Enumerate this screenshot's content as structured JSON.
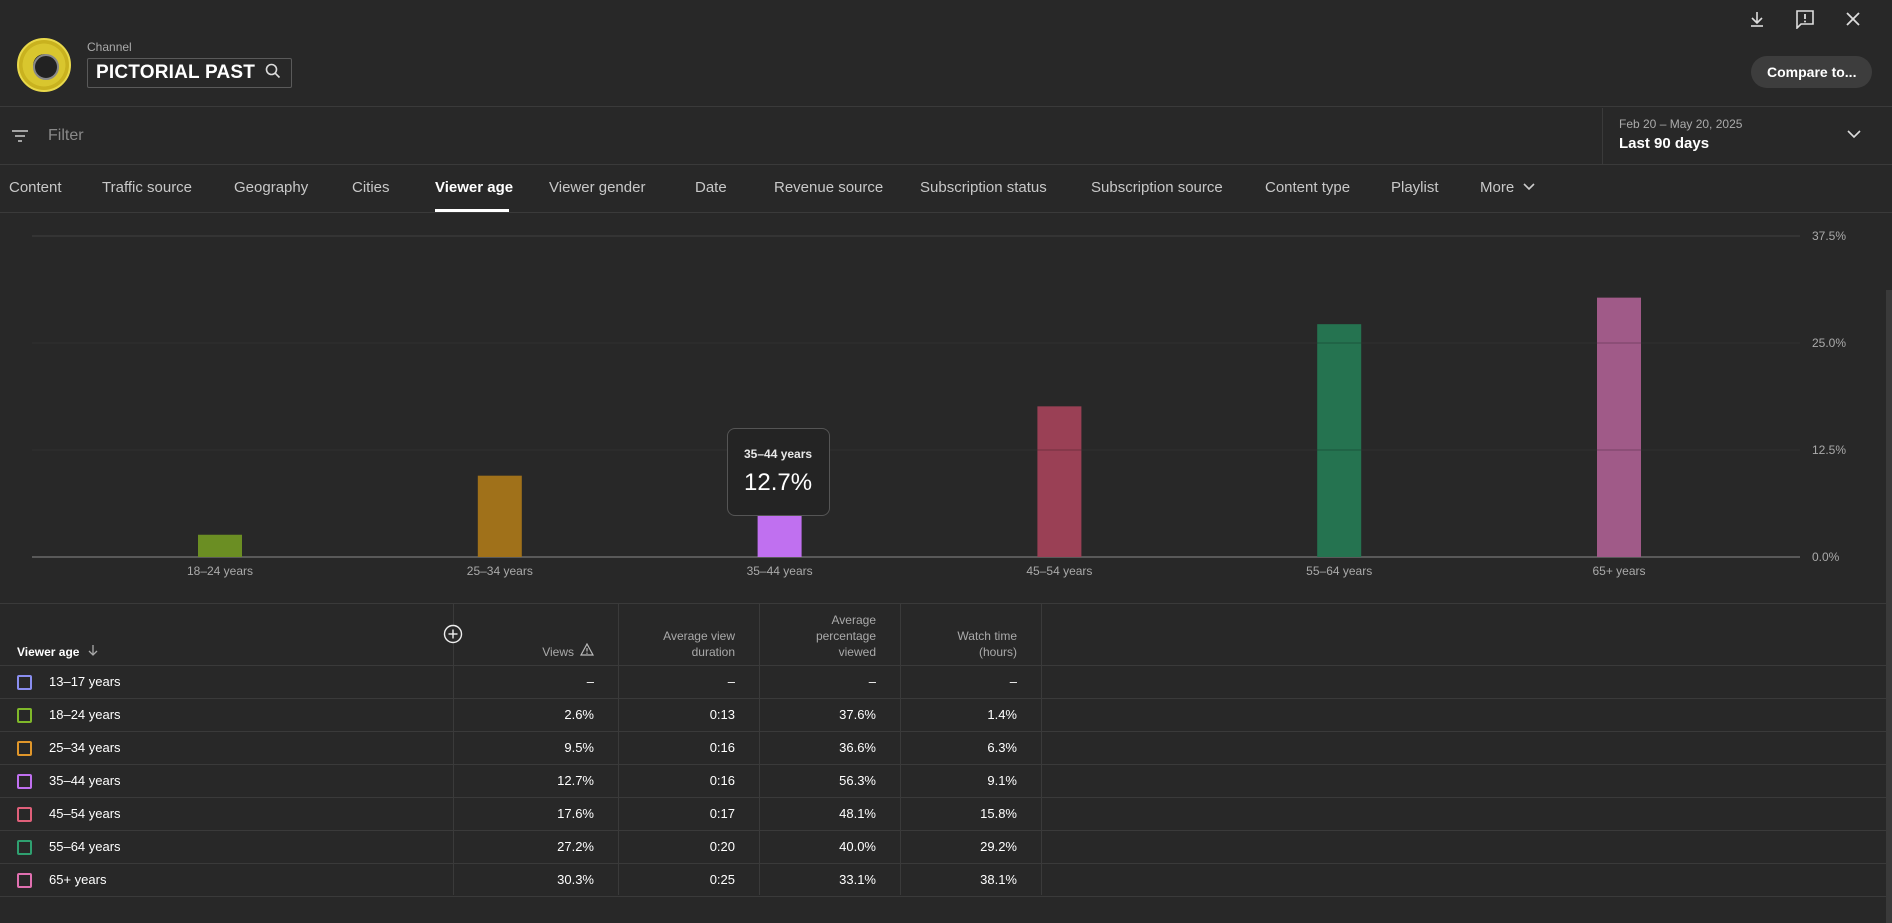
{
  "header": {
    "channel_label": "Channel",
    "channel_name": "PICTORIAL PAST",
    "compare_label": "Compare to..."
  },
  "filter": {
    "placeholder": "Filter"
  },
  "date": {
    "range": "Feb 20 – May 20, 2025",
    "label": "Last 90 days"
  },
  "tabs": [
    {
      "label": "Content"
    },
    {
      "label": "Traffic source"
    },
    {
      "label": "Geography"
    },
    {
      "label": "Cities"
    },
    {
      "label": "Viewer age"
    },
    {
      "label": "Viewer gender"
    },
    {
      "label": "Date"
    },
    {
      "label": "Revenue source"
    },
    {
      "label": "Subscription status"
    },
    {
      "label": "Subscription source"
    },
    {
      "label": "Content type"
    },
    {
      "label": "Playlist"
    },
    {
      "label": "More"
    }
  ],
  "active_tab": "Viewer age",
  "tooltip": {
    "category": "35–44 years",
    "value": "12.7%"
  },
  "chart_data": {
    "type": "bar",
    "categories": [
      "18–24 years",
      "25–34 years",
      "35–44 years",
      "45–54 years",
      "55–64 years",
      "65+ years"
    ],
    "values": [
      2.6,
      9.5,
      12.7,
      17.6,
      27.2,
      30.3
    ],
    "colors": [
      "#6b8e23",
      "#a0711a",
      "#c070f0",
      "#9a4055",
      "#257350",
      "#a05a88"
    ],
    "ylim": [
      0,
      37.5
    ],
    "yticks": [
      "0.0%",
      "12.5%",
      "25.0%",
      "37.5%"
    ],
    "ytick_values": [
      0,
      12.5,
      25,
      37.5
    ],
    "grid": true
  },
  "table": {
    "headers": {
      "age": "Viewer age",
      "views": "Views",
      "avg_duration_1": "Average view",
      "avg_duration_2": "duration",
      "avg_pct_1": "Average",
      "avg_pct_2": "percentage",
      "avg_pct_3": "viewed",
      "watch_1": "Watch time",
      "watch_2": "(hours)"
    },
    "rows": [
      {
        "age": "13–17 years",
        "color": "#8a8ef0",
        "views": "–",
        "duration": "–",
        "pct": "–",
        "watch": "–"
      },
      {
        "age": "18–24 years",
        "color": "#7fb82a",
        "views": "2.6%",
        "duration": "0:13",
        "pct": "37.6%",
        "watch": "1.4%"
      },
      {
        "age": "25–34 years",
        "color": "#e0962a",
        "views": "9.5%",
        "duration": "0:16",
        "pct": "36.6%",
        "watch": "6.3%"
      },
      {
        "age": "35–44 years",
        "color": "#c070f0",
        "views": "12.7%",
        "duration": "0:16",
        "pct": "56.3%",
        "watch": "9.1%"
      },
      {
        "age": "45–54 years",
        "color": "#e0607a",
        "views": "17.6%",
        "duration": "0:17",
        "pct": "48.1%",
        "watch": "15.8%"
      },
      {
        "age": "55–64 years",
        "color": "#2fa070",
        "views": "27.2%",
        "duration": "0:20",
        "pct": "40.0%",
        "watch": "29.2%"
      },
      {
        "age": "65+ years",
        "color": "#e070b0",
        "views": "30.3%",
        "duration": "0:25",
        "pct": "33.1%",
        "watch": "38.1%"
      }
    ]
  }
}
